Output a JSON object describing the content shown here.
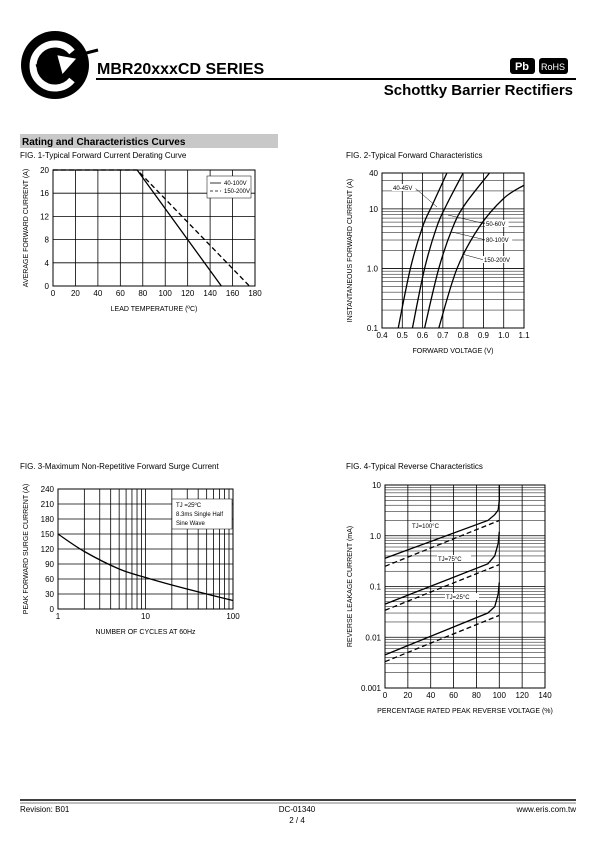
{
  "header": {
    "title": "MBR20xxxCD SERIES",
    "subtitle": "Schottky Barrier Rectifiers",
    "badges": [
      "Pb",
      "RoHS"
    ]
  },
  "section": "Rating and Characteristics Curves",
  "chart_data": [
    {
      "type": "line",
      "title": "FIG. 1-Typical Forward Current Derating Curve",
      "x_label": "LEAD  TEMPERATURE (ºC)",
      "y_label": "AVERAGE FORWARD CURRENT (A)",
      "xlim": [
        0,
        180
      ],
      "xticks": [
        0,
        20,
        40,
        60,
        80,
        100,
        120,
        140,
        160,
        180
      ],
      "ylim": [
        0,
        20
      ],
      "yticks": [
        0,
        4,
        8,
        12,
        16,
        20
      ],
      "grid": true,
      "legend": "top-right",
      "series": [
        {
          "name": "40-100V",
          "color": "#000000",
          "dash": false,
          "x": [
            0,
            75,
            150
          ],
          "values": [
            20,
            20,
            0
          ]
        },
        {
          "name": "150-200V",
          "color": "#000000",
          "dash": true,
          "x": [
            0,
            75,
            175
          ],
          "values": [
            20,
            20,
            0
          ]
        }
      ]
    },
    {
      "type": "line",
      "title": "FIG. 2-Typical Forward Characteristics",
      "x_label": "FORWARD VOLTAGE (V)",
      "y_label": "INSTANTANEOUS FORWARD CURRENT (A)",
      "xlim": [
        0.4,
        1.1
      ],
      "xticks": [
        0.4,
        0.5,
        0.6,
        0.7,
        0.8,
        0.9,
        {
          "value": 1,
          "label": "1.0"
        },
        1.1
      ],
      "ylim": [
        0.1,
        40
      ],
      "ylog": true,
      "yticks": [
        0.1,
        {
          "value": 1,
          "label": "1.0"
        },
        10,
        40
      ],
      "grid": true,
      "smooth": true,
      "series": [
        {
          "name": "40-45V",
          "color": "#000000",
          "dash": false,
          "x": [
            0.48,
            0.54,
            0.6,
            0.65,
            0.72
          ],
          "values": [
            0.1,
            1,
            5,
            12,
            40
          ]
        },
        {
          "name": "50-60V",
          "color": "#000000",
          "dash": false,
          "x": [
            0.55,
            0.61,
            0.67,
            0.72,
            0.8
          ],
          "values": [
            0.1,
            1,
            5,
            12,
            40
          ]
        },
        {
          "name": "80-100V",
          "color": "#000000",
          "dash": false,
          "x": [
            0.61,
            0.68,
            0.75,
            0.81,
            0.93
          ],
          "values": [
            0.1,
            1,
            5,
            12,
            40
          ]
        },
        {
          "name": "150-200V",
          "color": "#000000",
          "dash": false,
          "x": [
            0.68,
            0.77,
            0.88,
            1.0,
            1.1
          ],
          "values": [
            0.1,
            1,
            5,
            15,
            25
          ]
        }
      ]
    },
    {
      "type": "line",
      "title": "FIG. 3-Maximum Non-Repetitive Forward Surge Current",
      "x_label": "NUMBER OF CYCLES AT 60Hz",
      "y_label": "PEAK FORWARD SURGE CURRENT (A)",
      "xlim": [
        1,
        100
      ],
      "xlog": true,
      "xticks": [
        1,
        10,
        100
      ],
      "ylim": [
        0,
        240
      ],
      "yticks": [
        0,
        30,
        60,
        90,
        120,
        150,
        180,
        210,
        240
      ],
      "grid": true,
      "smooth": true,
      "annotations": [
        "TJ =25ºC",
        "8.3ms Single Half",
        "Sine Wave"
      ],
      "series": [
        {
          "color": "#000000",
          "dash": false,
          "x": [
            1,
            2,
            5,
            10,
            20,
            50,
            100
          ],
          "values": [
            150,
            115,
            80,
            63,
            48,
            30,
            17
          ]
        }
      ]
    },
    {
      "type": "line",
      "title": "FIG. 4-Typical Reverse Characteristics",
      "x_label": "PERCENTAGE RATED PEAK REVERSE VOLTAGE (%)",
      "y_label": "REVERSE LEAKAGE CURRENT (mA)",
      "xlim": [
        0,
        140
      ],
      "xticks": [
        0,
        20,
        40,
        60,
        80,
        100,
        120,
        140
      ],
      "ylim": [
        0.001,
        10
      ],
      "ylog": true,
      "yticks": [
        0.001,
        0.01,
        0.1,
        {
          "value": 1,
          "label": "1.0"
        },
        10
      ],
      "grid": true,
      "annotations": [
        "TJ=100°C",
        "TJ=75°C",
        "TJ=25°C"
      ],
      "series": [
        {
          "color": "#000000",
          "dash": false,
          "x": [
            0,
            90,
            96,
            99,
            100,
            100
          ],
          "values": [
            0.36,
            2.0,
            2.6,
            3.2,
            5,
            10
          ]
        },
        {
          "color": "#000000",
          "dash": true,
          "x": [
            0,
            100
          ],
          "values": [
            0.25,
            2.0
          ]
        },
        {
          "color": "#000000",
          "dash": false,
          "x": [
            0,
            90,
            96,
            99,
            100
          ],
          "values": [
            0.045,
            0.28,
            0.4,
            0.7,
            1.2
          ]
        },
        {
          "color": "#000000",
          "dash": true,
          "x": [
            0,
            100
          ],
          "values": [
            0.034,
            0.27
          ]
        },
        {
          "color": "#000000",
          "dash": false,
          "x": [
            0,
            90,
            96,
            99,
            100
          ],
          "values": [
            0.0045,
            0.03,
            0.04,
            0.07,
            0.12
          ]
        },
        {
          "color": "#000000",
          "dash": true,
          "x": [
            0,
            100
          ],
          "values": [
            0.0033,
            0.027
          ]
        }
      ]
    }
  ],
  "footer": {
    "revision": "Revision: B01",
    "doc": "DC-01340",
    "page": "2 / 4",
    "url": "www.eris.com.tw"
  }
}
